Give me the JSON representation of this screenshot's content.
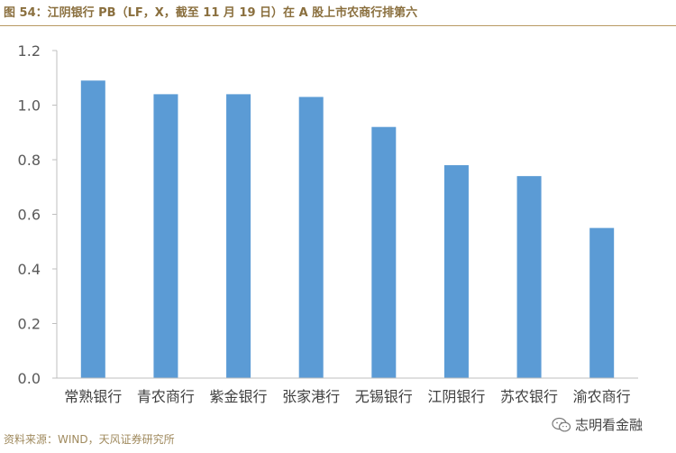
{
  "figure": {
    "title": "图 54：江阴银行 PB（LF，X，截至 11 月 19 日）在 A 股上市农商行排第六",
    "source": "资料来源：WIND，天风证券研究所",
    "watermark": "志明看金融",
    "watermark_icon": "wechat-icon"
  },
  "chart_data": {
    "type": "bar",
    "categories": [
      "常熟银行",
      "青农商行",
      "紫金银行",
      "张家港行",
      "无锡银行",
      "江阴银行",
      "苏农银行",
      "渝农商行"
    ],
    "values": [
      1.09,
      1.04,
      1.04,
      1.03,
      0.92,
      0.78,
      0.74,
      0.55
    ],
    "title": "",
    "xlabel": "",
    "ylabel": "",
    "ylim": [
      0,
      1.2
    ],
    "yticks": [
      "0.0",
      "0.2",
      "0.4",
      "0.6",
      "0.8",
      "1.0",
      "1.2"
    ],
    "grid": false,
    "legend": "none",
    "bar_color": "#5b9bd5",
    "axis_color": "#bfbfbf"
  }
}
